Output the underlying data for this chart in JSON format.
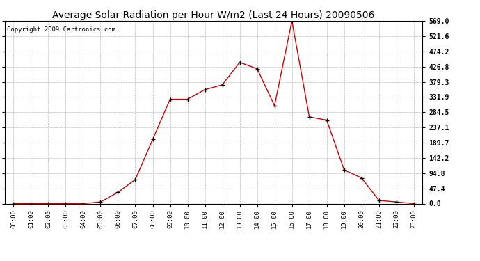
{
  "title": "Average Solar Radiation per Hour W/m2 (Last 24 Hours) 20090506",
  "copyright": "Copyright 2009 Cartronics.com",
  "hours": [
    "00:00",
    "01:00",
    "02:00",
    "03:00",
    "04:00",
    "05:00",
    "06:00",
    "07:00",
    "08:00",
    "09:00",
    "10:00",
    "11:00",
    "12:00",
    "13:00",
    "14:00",
    "15:00",
    "16:00",
    "17:00",
    "18:00",
    "19:00",
    "20:00",
    "21:00",
    "22:00",
    "23:00"
  ],
  "values": [
    0.0,
    0.0,
    0.0,
    0.0,
    0.0,
    5.0,
    35.0,
    75.0,
    200.0,
    325.0,
    325.0,
    355.0,
    370.0,
    440.0,
    420.0,
    305.0,
    569.0,
    270.0,
    260.0,
    105.0,
    80.0,
    10.0,
    5.0,
    0.0
  ],
  "line_color": "#cc0000",
  "marker": "+",
  "marker_color": "#000000",
  "bg_color": "#ffffff",
  "plot_bg_color": "#ffffff",
  "grid_color": "#bbbbbb",
  "title_fontsize": 10,
  "copyright_fontsize": 6.5,
  "ytick_labels": [
    "0.0",
    "47.4",
    "94.8",
    "142.2",
    "189.7",
    "237.1",
    "284.5",
    "331.9",
    "379.3",
    "426.8",
    "474.2",
    "521.6",
    "569.0"
  ],
  "ytick_values": [
    0.0,
    47.4,
    94.8,
    142.2,
    189.7,
    237.1,
    284.5,
    331.9,
    379.3,
    426.8,
    474.2,
    521.6,
    569.0
  ],
  "ymax": 569.0,
  "ymin": 0.0,
  "figwidth": 6.9,
  "figheight": 3.75,
  "dpi": 100
}
